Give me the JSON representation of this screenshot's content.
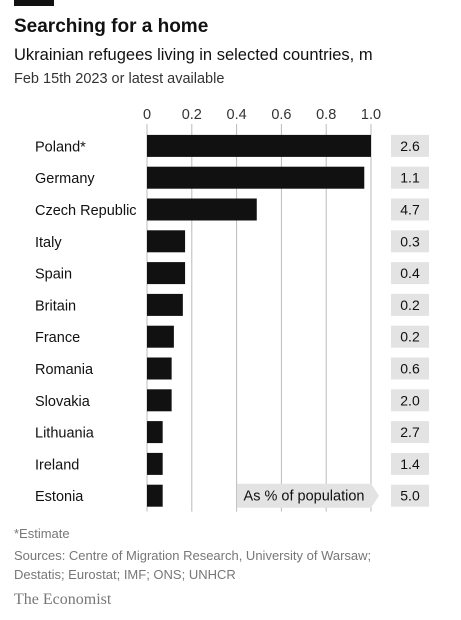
{
  "title": "Searching for a home",
  "subtitle": "Ukrainian refugees living in selected countries, m",
  "date_note": "Feb 15th 2023 or latest available",
  "footnote": "*Estimate",
  "sources_line1": "Sources: Centre of Migration Research, University of Warsaw;",
  "sources_line2": "Destatis; Eurostat; IMF; ONS; UNHCR",
  "brand": "The Economist",
  "colors": {
    "bar": "#111111",
    "grid": "#bbbbbb",
    "box": "#e3e3e3"
  },
  "chart_data": {
    "type": "bar",
    "orientation": "horizontal",
    "xlim": [
      0,
      1.0
    ],
    "ticks": [
      "0",
      "0.2",
      "0.4",
      "0.6",
      "0.8",
      "1.0"
    ],
    "grid": true,
    "categories": [
      "Poland*",
      "Germany",
      "Czech Republic",
      "Italy",
      "Spain",
      "Britain",
      "France",
      "Romania",
      "Slovakia",
      "Lithuania",
      "Ireland",
      "Estonia"
    ],
    "values": [
      1.0,
      0.97,
      0.49,
      0.17,
      0.17,
      0.16,
      0.12,
      0.11,
      0.11,
      0.07,
      0.07,
      0.07
    ],
    "secondary_label": "As % of population",
    "secondary_values": [
      "2.6",
      "1.1",
      "4.7",
      "0.3",
      "0.4",
      "0.2",
      "0.2",
      "0.6",
      "2.0",
      "2.7",
      "1.4",
      "5.0"
    ]
  }
}
